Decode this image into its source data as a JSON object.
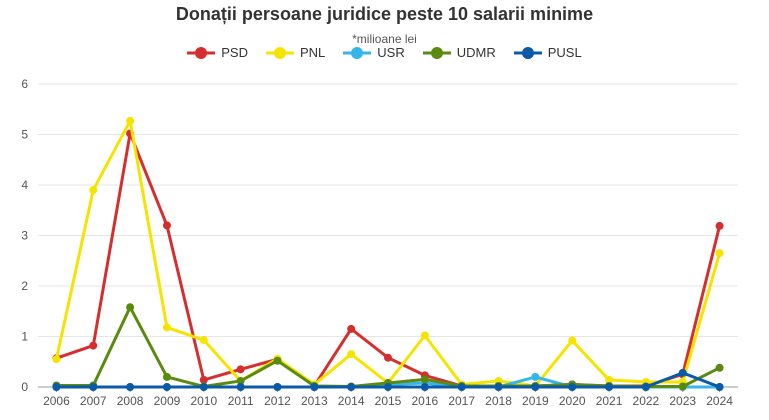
{
  "chart_data": {
    "type": "line",
    "title": "Donații persoane juridice peste 10 salarii minime",
    "subtitle": "*milioane lei",
    "xlabel": "",
    "ylabel": "",
    "ylim": [
      0,
      6
    ],
    "yticks": [
      "0",
      "1",
      "2",
      "3",
      "4",
      "5",
      "6"
    ],
    "grid": true,
    "legend_position": "top-center",
    "categories": [
      "2006",
      "2007",
      "2008",
      "2009",
      "2010",
      "2011",
      "2012",
      "2013",
      "2014",
      "2015",
      "2016",
      "2017",
      "2018",
      "2019",
      "2020",
      "2021",
      "2022",
      "2023",
      "2024"
    ],
    "series": [
      {
        "name": "PSD",
        "color": "#d62e2e",
        "values": [
          0.57,
          0.82,
          5.02,
          3.2,
          0.14,
          0.35,
          0.55,
          0.02,
          1.15,
          0.58,
          0.23,
          0.02,
          0.02,
          0.02,
          0.05,
          0.02,
          0.02,
          0.25,
          3.19
        ]
      },
      {
        "name": "PNL",
        "color": "#f5e400",
        "values": [
          0.55,
          3.9,
          5.27,
          1.18,
          0.93,
          0.12,
          0.56,
          0.05,
          0.65,
          0.08,
          1.02,
          0.05,
          0.12,
          0.02,
          0.92,
          0.14,
          0.1,
          0.1,
          2.65
        ]
      },
      {
        "name": "USR",
        "color": "#34b6e8",
        "values": [
          0,
          0,
          0,
          0,
          0,
          0,
          0,
          0,
          0,
          0.05,
          0.08,
          0,
          0,
          0.2,
          0,
          0,
          0,
          0,
          0
        ]
      },
      {
        "name": "UDMR",
        "color": "#5a8a0f",
        "values": [
          0.03,
          0.03,
          1.58,
          0.2,
          0.01,
          0.12,
          0.52,
          0.02,
          0.01,
          0.08,
          0.15,
          0.02,
          0.02,
          0.02,
          0.05,
          0.02,
          0.01,
          0.01,
          0.38
        ]
      },
      {
        "name": "PUSL",
        "color": "#0b5aa8",
        "values": [
          0,
          0,
          0,
          0,
          0,
          0,
          0,
          0,
          0,
          0,
          0,
          0,
          0,
          0,
          0,
          0,
          0,
          0.28,
          0
        ]
      }
    ]
  }
}
